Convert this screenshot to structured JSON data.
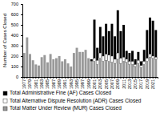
{
  "chart_data": {
    "type": "bar",
    "stacked": true,
    "ylabel": "Number of Cases Closed",
    "categories": [
      "1977",
      null,
      "1979",
      null,
      "1981",
      null,
      "1983",
      null,
      "1985",
      null,
      "1987",
      null,
      "1989",
      null,
      "1991",
      null,
      "1993",
      null,
      "1995",
      null,
      "1997",
      null,
      "1999",
      null,
      "2001",
      null,
      "2003",
      null,
      "2005",
      null,
      "2007",
      null,
      "2009",
      null,
      "2011",
      null,
      "2013",
      null,
      "2015",
      null,
      "2017",
      null,
      "2019",
      null,
      "2021",
      null
    ],
    "series": [
      {
        "name": "Total Matter Under Review (MUR) Cases Closed",
        "color": "#999999",
        "values": [
          230,
          380,
          220,
          160,
          120,
          110,
          190,
          210,
          140,
          220,
          170,
          180,
          200,
          150,
          170,
          130,
          100,
          230,
          280,
          240,
          240,
          260,
          180,
          150,
          150,
          120,
          180,
          150,
          160,
          150,
          140,
          130,
          170,
          130,
          150,
          140,
          120,
          120,
          100,
          130,
          90,
          120,
          150,
          190,
          180,
          170
        ]
      },
      {
        "name": "Total Alternative Dispute Resolution (ADR) Cases Closed",
        "color": "#ffffff",
        "values": [
          0,
          0,
          0,
          0,
          0,
          0,
          0,
          0,
          0,
          0,
          0,
          0,
          0,
          0,
          0,
          0,
          0,
          0,
          0,
          0,
          0,
          0,
          0,
          0,
          30,
          40,
          50,
          50,
          60,
          60,
          60,
          40,
          60,
          50,
          40,
          30,
          30,
          30,
          20,
          30,
          20,
          30,
          30,
          30,
          20,
          20
        ]
      },
      {
        "name": "Total Administrative Fine (AF) Cases Closed",
        "color": "#000000",
        "values": [
          0,
          0,
          0,
          0,
          0,
          0,
          0,
          0,
          0,
          0,
          0,
          0,
          0,
          0,
          0,
          0,
          0,
          0,
          0,
          0,
          0,
          0,
          0,
          20,
          370,
          120,
          250,
          190,
          290,
          230,
          310,
          220,
          410,
          260,
          310,
          80,
          80,
          100,
          50,
          80,
          40,
          110,
          270,
          350,
          340,
          260
        ]
      }
    ],
    "ylim": [
      0,
      700
    ],
    "yticks": [
      0,
      100,
      200,
      300,
      400,
      500,
      600,
      700
    ]
  }
}
